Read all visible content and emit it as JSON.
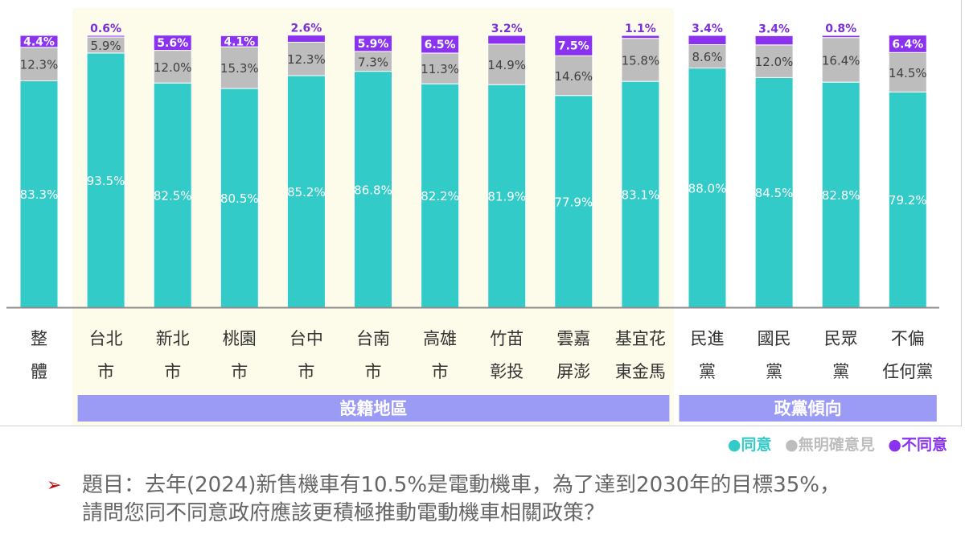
{
  "colors": {
    "agree": "#33cbc8",
    "no_opinion": "#bdbdbd",
    "disagree": "#8a32f0",
    "region_bg": "#fdfcea",
    "group_bar": "#9b9bf5",
    "axis": "#8c8c8c",
    "label_dark": "#404040",
    "label_purple": "#7b2fd6"
  },
  "chart_data": {
    "type": "bar",
    "stacked": true,
    "categories": [
      {
        "line1": "整",
        "line2": "體",
        "group": "overall"
      },
      {
        "line1": "台北",
        "line2": "市",
        "group": "region"
      },
      {
        "line1": "新北",
        "line2": "市",
        "group": "region"
      },
      {
        "line1": "桃園",
        "line2": "市",
        "group": "region"
      },
      {
        "line1": "台中",
        "line2": "市",
        "group": "region"
      },
      {
        "line1": "台南",
        "line2": "市",
        "group": "region"
      },
      {
        "line1": "高雄",
        "line2": "市",
        "group": "region"
      },
      {
        "line1": "竹苗",
        "line2": "彰投",
        "group": "region"
      },
      {
        "line1": "雲嘉",
        "line2": "屏澎",
        "group": "region"
      },
      {
        "line1": "基宜花",
        "line2": "東金馬",
        "group": "region"
      },
      {
        "line1": "民進",
        "line2": "黨",
        "group": "party"
      },
      {
        "line1": "國民",
        "line2": "黨",
        "group": "party"
      },
      {
        "line1": "民眾",
        "line2": "黨",
        "group": "party"
      },
      {
        "line1": "不偏",
        "line2": "任何黨",
        "group": "party"
      }
    ],
    "series": [
      {
        "name": "同意",
        "key": "agree",
        "values": [
          83.3,
          93.5,
          82.5,
          80.5,
          85.2,
          86.8,
          82.2,
          81.9,
          77.9,
          83.1,
          88.0,
          84.5,
          82.8,
          79.2
        ],
        "labels": [
          "83.3%",
          "93.5%",
          "82.5%",
          "80.5%",
          "85.2%",
          "86.8%",
          "82.2%",
          "81.9%",
          "77.9%",
          "83.1%",
          "88.0%",
          "84.5%",
          "82.8%",
          "79.2%"
        ]
      },
      {
        "name": "無明確意見",
        "key": "no_opinion",
        "values": [
          12.3,
          5.9,
          12.0,
          15.3,
          12.3,
          7.3,
          11.3,
          14.9,
          14.6,
          15.8,
          8.6,
          12.0,
          16.4,
          14.5
        ],
        "labels": [
          "12.3%",
          "5.9%",
          "12.0%",
          "15.3%",
          "12.3%",
          "7.3%",
          "11.3%",
          "14.9%",
          "14.6%",
          "15.8%",
          "8.6%",
          "12.0%",
          "16.4%",
          "14.5%"
        ]
      },
      {
        "name": "不同意",
        "key": "disagree",
        "values": [
          4.4,
          0.6,
          5.6,
          4.1,
          2.6,
          5.9,
          6.5,
          3.2,
          7.5,
          1.1,
          3.4,
          3.4,
          0.8,
          6.4
        ],
        "labels": [
          "4.4%",
          "0.6%",
          "5.6%",
          "4.1%",
          "2.6%",
          "5.9%",
          "6.5%",
          "3.2%",
          "7.5%",
          "1.1%",
          "3.4%",
          "3.4%",
          "0.8%",
          "6.4%"
        ]
      }
    ],
    "ylim": [
      0,
      100
    ],
    "groups": [
      {
        "key": "region",
        "label": "設籍地區"
      },
      {
        "key": "party",
        "label": "政黨傾向"
      }
    ],
    "legend": {
      "position": "bottom-right",
      "items": [
        {
          "symbol": "●",
          "label": "同意",
          "key": "agree"
        },
        {
          "symbol": "●",
          "label": "無明確意見",
          "key": "no_opinion"
        },
        {
          "symbol": "●",
          "label": "不同意",
          "key": "disagree"
        }
      ]
    }
  },
  "question": {
    "bullet": "➢",
    "line1": "題目：去年(2024)新售機車有10.5%是電動機車，為了達到2030年的目標35%，",
    "line2": "請問您同不同意政府應該更積極推動電動機車相關政策？"
  }
}
